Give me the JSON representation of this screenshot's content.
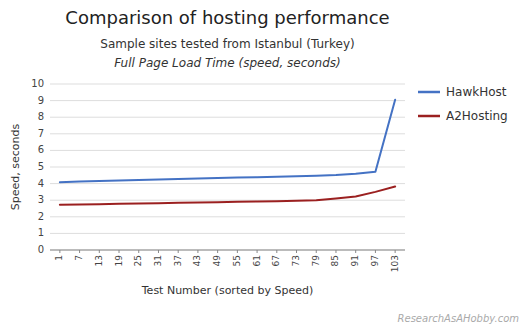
{
  "chart_data": {
    "type": "line",
    "title": "Comparison of hosting performance",
    "subtitle": [
      "Sample sites tested from Istanbul (Turkey)",
      "Full Page Load Time (speed, seconds)"
    ],
    "x_label": "Test Number (sorted by Speed)",
    "y_label": "Speed, seconds",
    "annotations": [
      "ResearchAsAHobby.com"
    ],
    "categories": [
      "1",
      "7",
      "13",
      "19",
      "25",
      "31",
      "37",
      "43",
      "49",
      "55",
      "61",
      "67",
      "73",
      "79",
      "85",
      "91",
      "97",
      "103"
    ],
    "series": [
      {
        "name": "HawkHost",
        "color": "#4472C4",
        "values": [
          4.08,
          4.12,
          4.15,
          4.18,
          4.22,
          4.25,
          4.28,
          4.3,
          4.33,
          4.36,
          4.39,
          4.42,
          4.45,
          4.48,
          4.52,
          4.6,
          4.72,
          9.05
        ]
      },
      {
        "name": "A2Hosting",
        "color": "#9B2020",
        "values": [
          2.72,
          2.74,
          2.76,
          2.78,
          2.8,
          2.82,
          2.84,
          2.86,
          2.88,
          2.9,
          2.92,
          2.94,
          2.97,
          3.0,
          3.1,
          3.22,
          3.5,
          3.82
        ]
      }
    ],
    "ylim": [
      0,
      10
    ],
    "yticks": [
      0,
      1,
      2,
      3,
      4,
      5,
      6,
      7,
      8,
      9,
      10
    ],
    "grid": true,
    "legend": "right"
  }
}
